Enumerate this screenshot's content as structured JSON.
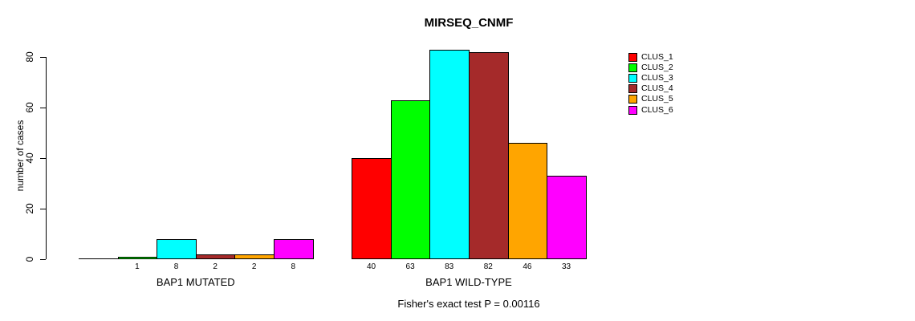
{
  "chart_data": {
    "type": "bar",
    "title": "MIRSEQ_CNMF",
    "ylabel": "number of cases",
    "caption": "Fisher's exact test P = 0.00116",
    "ylim": [
      0,
      80
    ],
    "yticks": [
      0,
      20,
      40,
      60,
      80
    ],
    "grid": false,
    "legend_position": "right",
    "series": [
      {
        "name": "CLUS_1",
        "color": "#FF0000"
      },
      {
        "name": "CLUS_2",
        "color": "#00FF00"
      },
      {
        "name": "CLUS_3",
        "color": "#00FFFF"
      },
      {
        "name": "CLUS_4",
        "color": "#A52A2A"
      },
      {
        "name": "CLUS_5",
        "color": "#FFA500"
      },
      {
        "name": "CLUS_6",
        "color": "#FF00FF"
      }
    ],
    "groups": [
      {
        "label": "BAP1 MUTATED",
        "values": [
          0,
          1,
          8,
          2,
          2,
          8
        ],
        "bar_labels": [
          "",
          "1",
          "8",
          "2",
          "2",
          "8"
        ]
      },
      {
        "label": "BAP1 WILD-TYPE",
        "values": [
          40,
          63,
          83,
          82,
          46,
          33
        ],
        "bar_labels": [
          "40",
          "63",
          "83",
          "82",
          "46",
          "33"
        ]
      }
    ]
  }
}
